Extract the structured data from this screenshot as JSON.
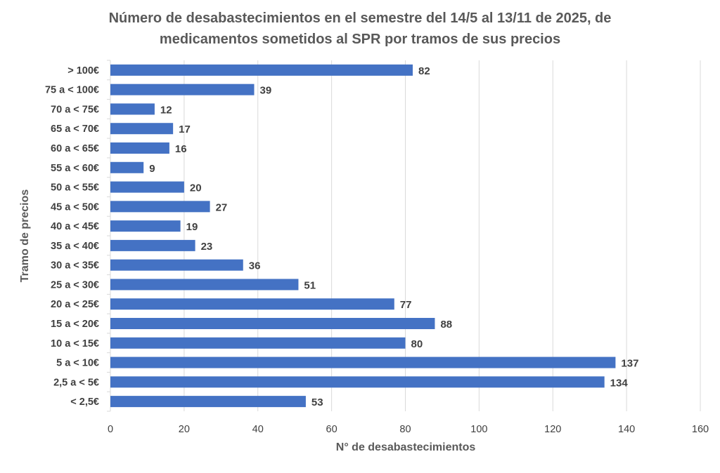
{
  "chart_data": {
    "type": "bar",
    "orientation": "horizontal",
    "title_lines": [
      "Número de desabastecimientos en el semestre del 14/5 al 13/11 de 2025, de",
      "medicamentos sometidos al SPR por tramos de sus precios"
    ],
    "xlabel": "N° de desabastecimientos",
    "ylabel": "Tramo de precios",
    "categories": [
      "> 100€",
      "75 a < 100€",
      "70 a < 75€",
      "65 a < 70€",
      "60 a < 65€",
      "55 a < 60€",
      "50 a < 55€",
      "45 a < 50€",
      "40 a < 45€",
      "35 a < 40€",
      "30 a < 35€",
      "25 a < 30€",
      "20 a < 25€",
      "15 a < 20€",
      "10 a < 15€",
      "5 a < 10€",
      "2,5 a < 5€",
      "< 2,5€"
    ],
    "values": [
      82,
      39,
      12,
      17,
      16,
      9,
      20,
      27,
      19,
      23,
      36,
      51,
      77,
      88,
      80,
      137,
      134,
      53
    ],
    "xlim": [
      0,
      160
    ],
    "xticks": [
      0,
      20,
      40,
      60,
      80,
      100,
      120,
      140,
      160
    ],
    "grid": true,
    "bar_color": "#4472C4"
  }
}
